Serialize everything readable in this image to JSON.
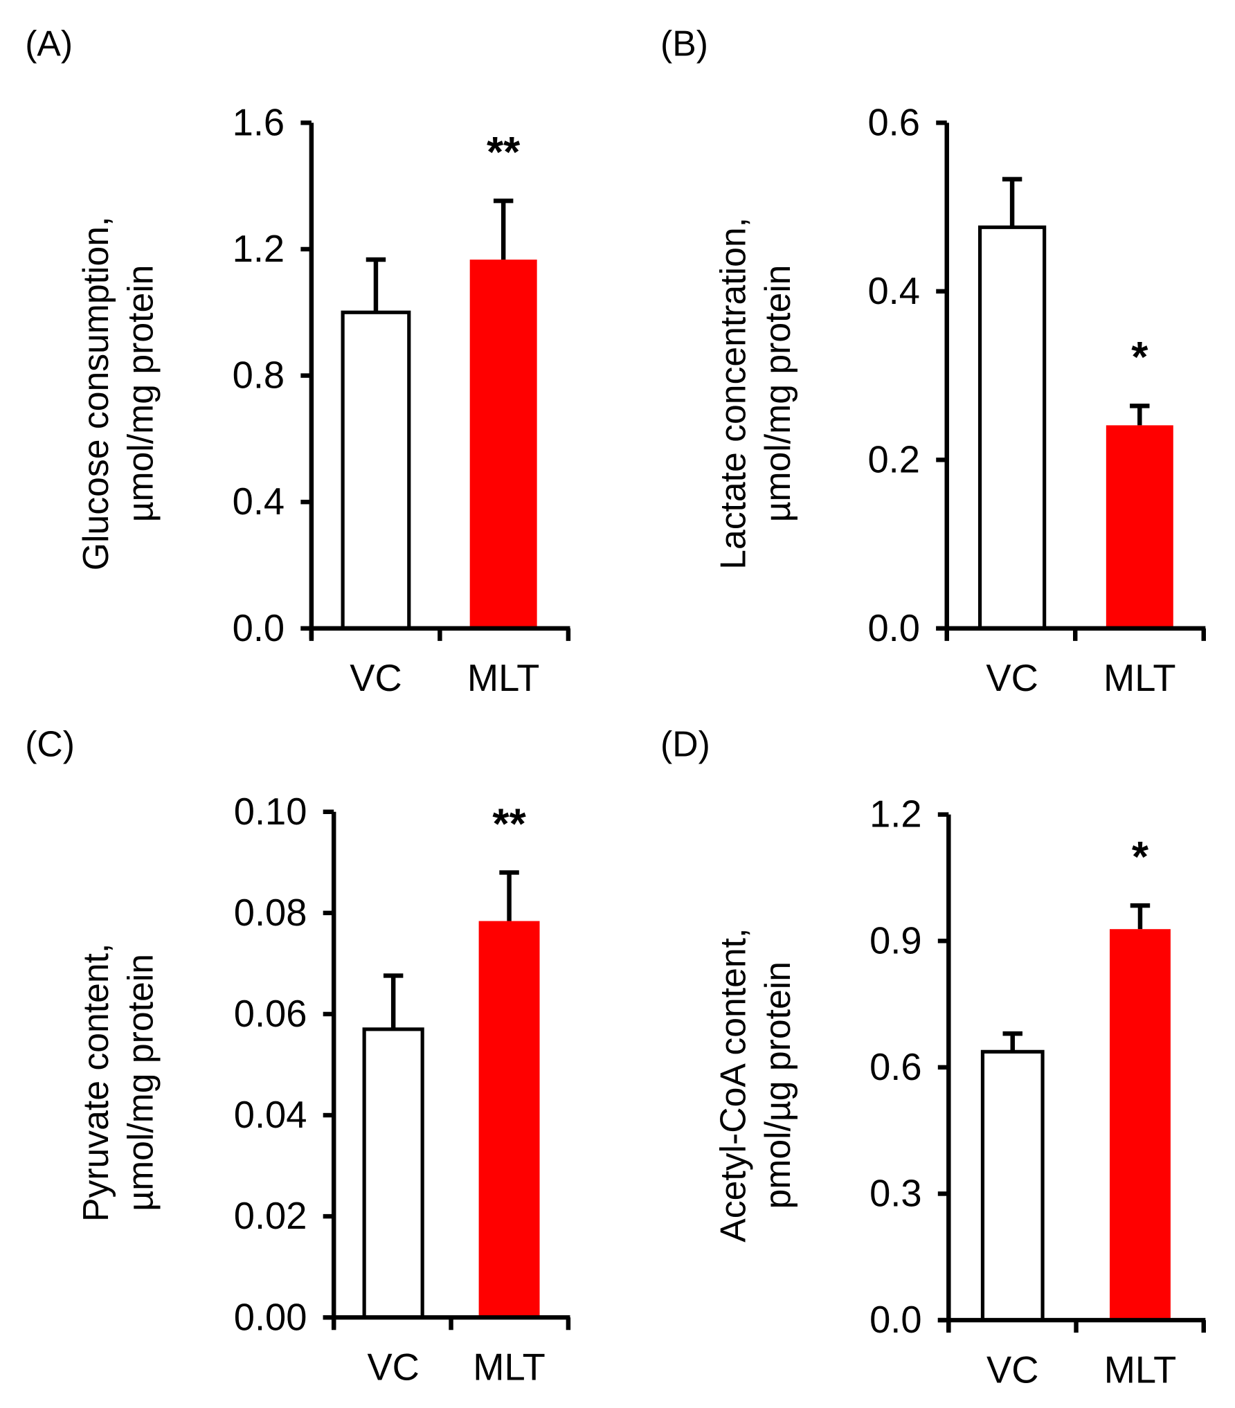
{
  "colors": {
    "vc_fill": "#ffffff",
    "mlt_fill": "#ff0000",
    "axis": "#000000"
  },
  "chart_data": [
    {
      "type": "bar",
      "panel_label": "(A)",
      "categories": [
        "VC",
        "MLT"
      ],
      "values": [
        1.0,
        1.167
      ],
      "errors": [
        0.167,
        0.186
      ],
      "significance": [
        "",
        "**"
      ],
      "ylabel_lines": [
        "Glucose consumption,",
        "µmol/mg protein"
      ],
      "ylim": [
        0,
        1.6
      ],
      "yticks": [
        "0.0",
        "0.4",
        "0.8",
        "1.2",
        "1.6"
      ],
      "ytick_values": [
        0,
        0.4,
        0.8,
        1.2,
        1.6
      ]
    },
    {
      "type": "bar",
      "panel_label": "(B)",
      "categories": [
        "VC",
        "MLT"
      ],
      "values": [
        0.476,
        0.241
      ],
      "errors": [
        0.057,
        0.023
      ],
      "significance": [
        "",
        "*"
      ],
      "ylabel_lines": [
        "Lactate concentration,",
        "µmol/mg protein"
      ],
      "ylim": [
        0,
        0.6
      ],
      "yticks": [
        "0.0",
        "0.2",
        "0.4",
        "0.6"
      ],
      "ytick_values": [
        0,
        0.2,
        0.4,
        0.6
      ]
    },
    {
      "type": "bar",
      "panel_label": "(C)",
      "categories": [
        "VC",
        "MLT"
      ],
      "values": [
        0.057,
        0.0784
      ],
      "errors": [
        0.0106,
        0.0096
      ],
      "significance": [
        "",
        "**"
      ],
      "ylabel_lines": [
        "Pyruvate content,",
        "µmol/mg protein"
      ],
      "ylim": [
        0,
        0.1
      ],
      "yticks": [
        "0.00",
        "0.02",
        "0.04",
        "0.06",
        "0.08",
        "0.10"
      ],
      "ytick_values": [
        0,
        0.02,
        0.04,
        0.06,
        0.08,
        0.1
      ]
    },
    {
      "type": "bar",
      "panel_label": "(D)",
      "categories": [
        "VC",
        "MLT"
      ],
      "values": [
        0.637,
        0.928
      ],
      "errors": [
        0.043,
        0.056
      ],
      "significance": [
        "",
        "*"
      ],
      "ylabel_lines": [
        "Acetyl-CoA content,",
        "pmol/µg protein"
      ],
      "ylim": [
        0,
        1.2
      ],
      "yticks": [
        "0.0",
        "0.3",
        "0.6",
        "0.9",
        "1.2"
      ],
      "ytick_values": [
        0,
        0.3,
        0.6,
        0.9,
        1.2
      ]
    }
  ]
}
